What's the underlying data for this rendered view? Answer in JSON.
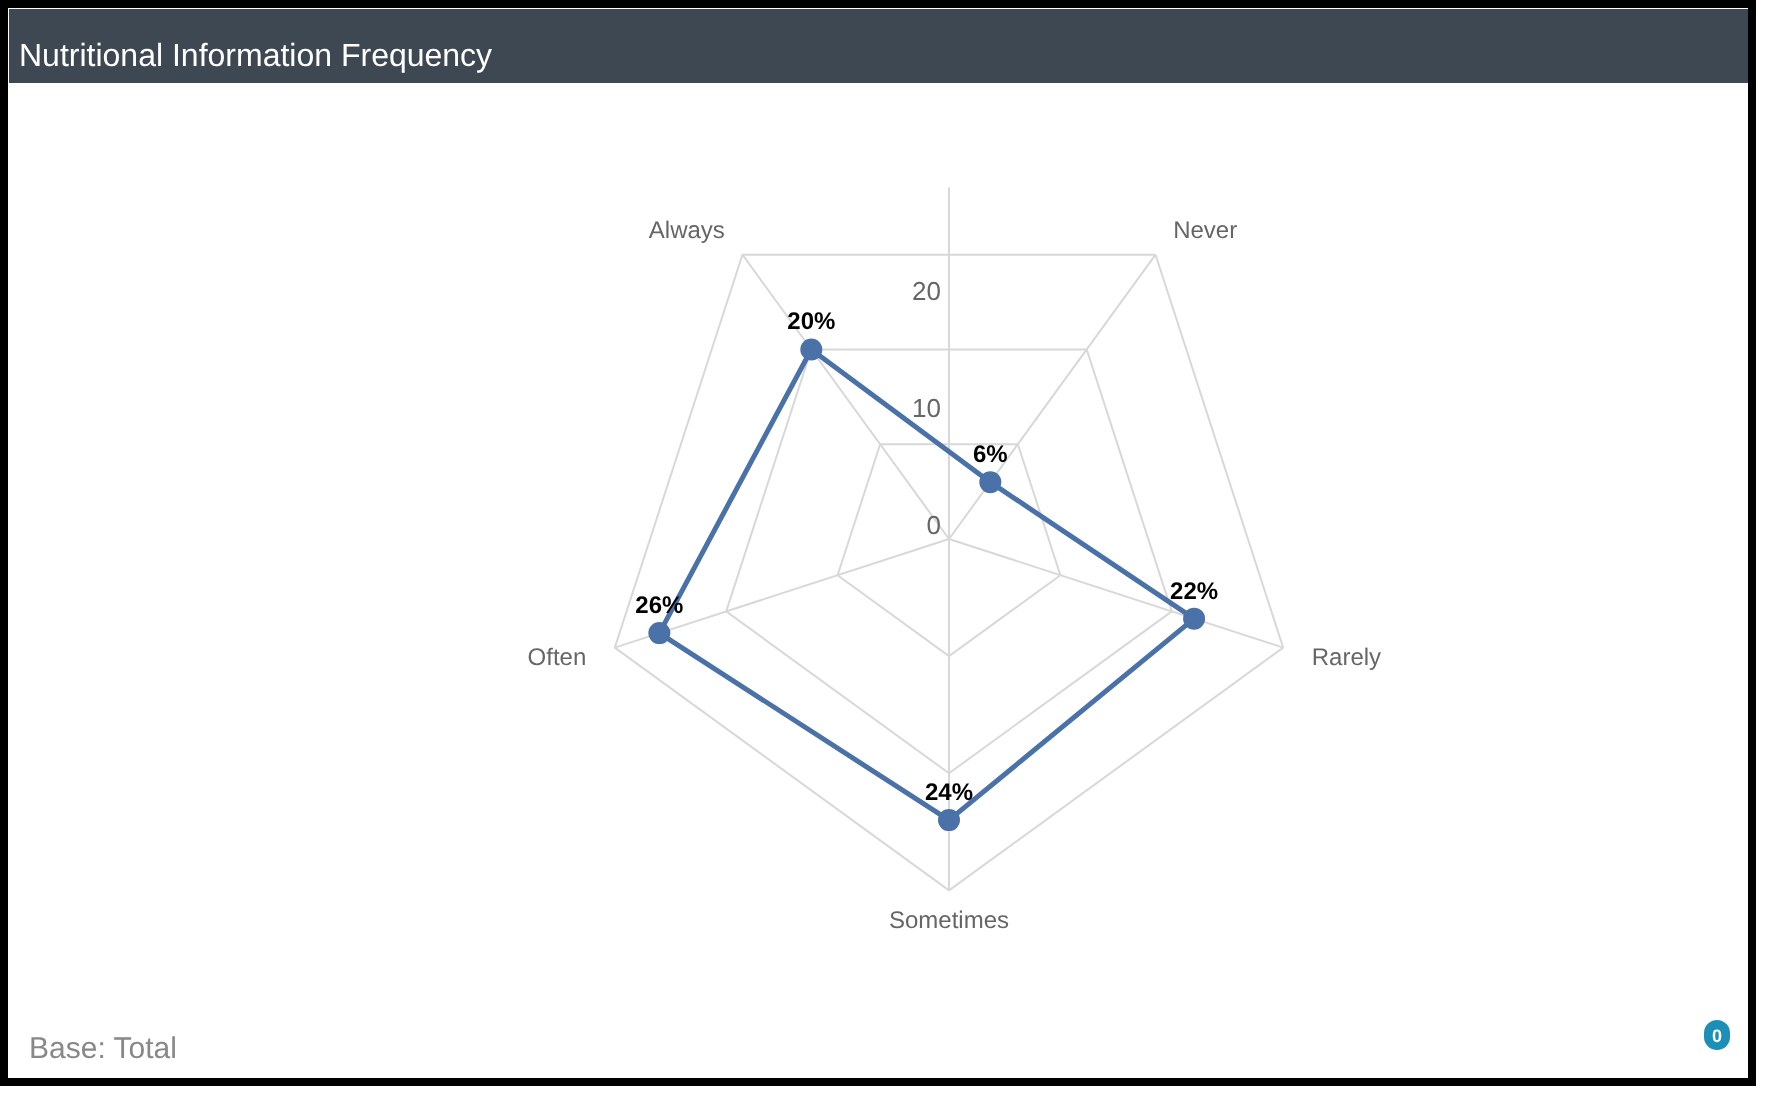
{
  "chart_data": {
    "type": "radar",
    "title": "Nutritional Information Frequency",
    "categories": [
      "Never",
      "Rarely",
      "Sometimes",
      "Often",
      "Always"
    ],
    "series": [
      {
        "color": "#4a72a8",
        "values": [
          6,
          22,
          24,
          26,
          20
        ],
        "value_labels": [
          "6%",
          "22%",
          "24%",
          "26%",
          "20%"
        ]
      }
    ],
    "ylim": [
      0,
      30
    ],
    "yticks": [
      0,
      10,
      20
    ],
    "grid": true,
    "marker": "circle",
    "line_style": "solid",
    "annotations": [
      "Base: Total",
      "0"
    ]
  }
}
